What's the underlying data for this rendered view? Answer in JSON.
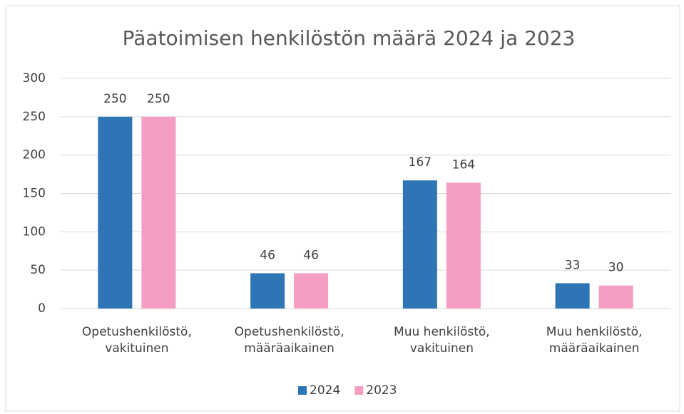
{
  "chart_data": {
    "type": "bar",
    "title": "Päatoimisen henkilöstön määrä 2024 ja 2023",
    "categories": [
      "Opetushenkilöstö, vakituinen",
      "Opetushenkilöstö, määräaikainen",
      "Muu henkilöstö, vakituinen",
      "Muu henkilöstö, määräaikainen"
    ],
    "series": [
      {
        "name": "2024",
        "color": "#2e75b6",
        "values": [
          250,
          46,
          167,
          33
        ]
      },
      {
        "name": "2023",
        "color": "#f49ec4",
        "values": [
          250,
          46,
          164,
          30
        ]
      }
    ],
    "ylim": [
      0,
      300
    ],
    "yticks": [
      0,
      50,
      100,
      150,
      200,
      250,
      300
    ],
    "grid": true,
    "legend": "bottom"
  }
}
